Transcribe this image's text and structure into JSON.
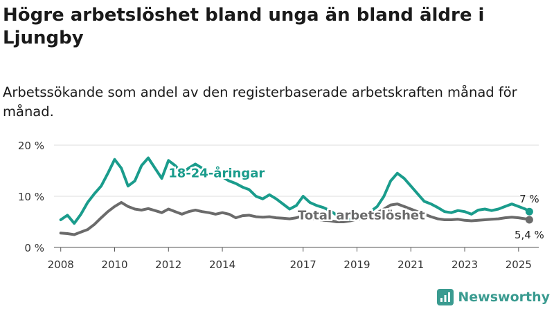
{
  "header": {
    "title": "Högre arbetslöshet bland unga än bland äldre i Ljungby",
    "subtitle": "Arbetssökande som andel av den registerbaserade arbetskraften månad för månad."
  },
  "brand": {
    "name": "Newsworthy",
    "color": "#3a9b90"
  },
  "chart_data": {
    "type": "line",
    "title": "Högre arbetslöshet bland unga än bland äldre i Ljungby",
    "subtitle": "Arbetssökande som andel av den registerbaserade arbetskraften månad för månad.",
    "xlabel": "",
    "ylabel": "",
    "x_range": [
      2007.75,
      2025.75
    ],
    "ylim": [
      0,
      20
    ],
    "y_ticks": [
      0,
      10,
      20
    ],
    "y_tick_labels": [
      "0 %",
      "10 %",
      "20 %"
    ],
    "x_ticks": [
      2008,
      2010,
      2012,
      2014,
      2017,
      2019,
      2021,
      2023,
      2025
    ],
    "x_tick_labels": [
      "2008",
      "2010",
      "2012",
      "2014",
      "2017",
      "2019",
      "2021",
      "2023",
      "2025"
    ],
    "grid": "horizontal",
    "legend": "inline labels",
    "series": [
      {
        "name": "18-24-åringar",
        "color": "#1a9c8c",
        "end_label": "7 %",
        "points": [
          [
            2008.0,
            5.4
          ],
          [
            2008.25,
            6.3
          ],
          [
            2008.5,
            4.7
          ],
          [
            2008.75,
            6.5
          ],
          [
            2009.0,
            8.8
          ],
          [
            2009.25,
            10.5
          ],
          [
            2009.5,
            12.0
          ],
          [
            2009.75,
            14.5
          ],
          [
            2010.0,
            17.2
          ],
          [
            2010.25,
            15.5
          ],
          [
            2010.5,
            12.0
          ],
          [
            2010.75,
            13.0
          ],
          [
            2011.0,
            16.0
          ],
          [
            2011.25,
            17.5
          ],
          [
            2011.5,
            15.5
          ],
          [
            2011.75,
            13.5
          ],
          [
            2012.0,
            17.0
          ],
          [
            2012.25,
            16.0
          ],
          [
            2012.5,
            14.5
          ],
          [
            2012.75,
            15.5
          ],
          [
            2013.0,
            16.3
          ],
          [
            2013.25,
            15.5
          ],
          [
            2013.5,
            14.5
          ],
          [
            2013.75,
            14.0
          ],
          [
            2014.0,
            13.8
          ],
          [
            2014.25,
            13.0
          ],
          [
            2014.5,
            12.5
          ],
          [
            2014.75,
            11.8
          ],
          [
            2015.0,
            11.3
          ],
          [
            2015.25,
            10.0
          ],
          [
            2015.5,
            9.5
          ],
          [
            2015.75,
            10.3
          ],
          [
            2016.0,
            9.5
          ],
          [
            2016.25,
            8.5
          ],
          [
            2016.5,
            7.5
          ],
          [
            2016.75,
            8.2
          ],
          [
            2017.0,
            10.0
          ],
          [
            2017.25,
            8.8
          ],
          [
            2017.5,
            8.2
          ],
          [
            2017.75,
            7.8
          ],
          [
            2018.0,
            7.2
          ],
          [
            2018.25,
            6.3
          ],
          [
            2018.5,
            5.5
          ],
          [
            2018.75,
            5.5
          ],
          [
            2019.0,
            5.7
          ],
          [
            2019.25,
            6.2
          ],
          [
            2019.5,
            7.0
          ],
          [
            2019.75,
            8.0
          ],
          [
            2020.0,
            10.0
          ],
          [
            2020.25,
            13.0
          ],
          [
            2020.5,
            14.5
          ],
          [
            2020.75,
            13.5
          ],
          [
            2021.0,
            12.0
          ],
          [
            2021.25,
            10.5
          ],
          [
            2021.5,
            9.0
          ],
          [
            2021.75,
            8.5
          ],
          [
            2022.0,
            7.8
          ],
          [
            2022.25,
            7.0
          ],
          [
            2022.5,
            6.8
          ],
          [
            2022.75,
            7.2
          ],
          [
            2023.0,
            7.0
          ],
          [
            2023.25,
            6.5
          ],
          [
            2023.5,
            7.3
          ],
          [
            2023.75,
            7.5
          ],
          [
            2024.0,
            7.2
          ],
          [
            2024.25,
            7.5
          ],
          [
            2024.5,
            8.0
          ],
          [
            2024.75,
            8.5
          ],
          [
            2025.0,
            8.0
          ],
          [
            2025.25,
            7.5
          ],
          [
            2025.4,
            7.0
          ]
        ]
      },
      {
        "name": "Total arbetslöshet",
        "color": "#6b6b6b",
        "end_label": "5,4 %",
        "points": [
          [
            2008.0,
            2.8
          ],
          [
            2008.25,
            2.7
          ],
          [
            2008.5,
            2.5
          ],
          [
            2008.75,
            3.0
          ],
          [
            2009.0,
            3.5
          ],
          [
            2009.25,
            4.5
          ],
          [
            2009.5,
            5.8
          ],
          [
            2009.75,
            7.0
          ],
          [
            2010.0,
            8.0
          ],
          [
            2010.25,
            8.8
          ],
          [
            2010.5,
            8.0
          ],
          [
            2010.75,
            7.5
          ],
          [
            2011.0,
            7.3
          ],
          [
            2011.25,
            7.6
          ],
          [
            2011.5,
            7.2
          ],
          [
            2011.75,
            6.8
          ],
          [
            2012.0,
            7.5
          ],
          [
            2012.25,
            7.0
          ],
          [
            2012.5,
            6.5
          ],
          [
            2012.75,
            7.0
          ],
          [
            2013.0,
            7.3
          ],
          [
            2013.25,
            7.0
          ],
          [
            2013.5,
            6.8
          ],
          [
            2013.75,
            6.5
          ],
          [
            2014.0,
            6.8
          ],
          [
            2014.25,
            6.5
          ],
          [
            2014.5,
            5.8
          ],
          [
            2014.75,
            6.2
          ],
          [
            2015.0,
            6.3
          ],
          [
            2015.25,
            6.0
          ],
          [
            2015.5,
            5.9
          ],
          [
            2015.75,
            6.0
          ],
          [
            2016.0,
            5.8
          ],
          [
            2016.25,
            5.7
          ],
          [
            2016.5,
            5.6
          ],
          [
            2016.75,
            5.8
          ],
          [
            2017.0,
            6.2
          ],
          [
            2017.25,
            5.8
          ],
          [
            2017.5,
            5.5
          ],
          [
            2017.75,
            5.3
          ],
          [
            2018.0,
            5.2
          ],
          [
            2018.25,
            5.0
          ],
          [
            2018.5,
            5.0
          ],
          [
            2018.75,
            5.2
          ],
          [
            2019.0,
            5.5
          ],
          [
            2019.25,
            5.8
          ],
          [
            2019.5,
            6.2
          ],
          [
            2019.75,
            6.8
          ],
          [
            2020.0,
            7.5
          ],
          [
            2020.25,
            8.3
          ],
          [
            2020.5,
            8.5
          ],
          [
            2020.75,
            8.0
          ],
          [
            2021.0,
            7.5
          ],
          [
            2021.25,
            7.0
          ],
          [
            2021.5,
            6.5
          ],
          [
            2021.75,
            6.0
          ],
          [
            2022.0,
            5.6
          ],
          [
            2022.25,
            5.4
          ],
          [
            2022.5,
            5.4
          ],
          [
            2022.75,
            5.5
          ],
          [
            2023.0,
            5.3
          ],
          [
            2023.25,
            5.2
          ],
          [
            2023.5,
            5.3
          ],
          [
            2023.75,
            5.4
          ],
          [
            2024.0,
            5.5
          ],
          [
            2024.25,
            5.6
          ],
          [
            2024.5,
            5.8
          ],
          [
            2024.75,
            5.9
          ],
          [
            2025.0,
            5.8
          ],
          [
            2025.25,
            5.6
          ],
          [
            2025.4,
            5.4
          ]
        ]
      }
    ]
  }
}
